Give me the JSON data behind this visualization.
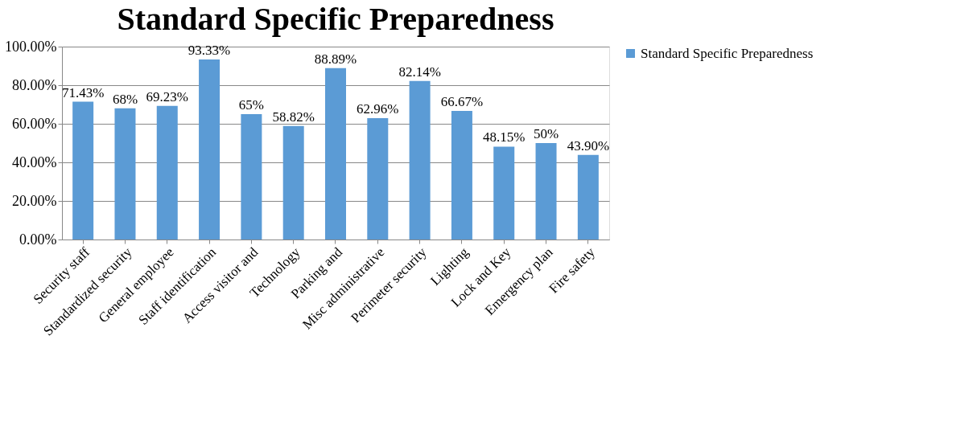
{
  "chart_data": {
    "type": "bar",
    "title": "Standard Specific Preparedness",
    "categories": [
      "Security staff",
      "Standardized security",
      "General employee",
      "Staff identification",
      "Access visitor and",
      "Technology",
      "Parking and",
      "Misc administrative",
      "Perimeter security",
      "Lighting",
      "Lock and Key",
      "Emergency plan",
      "Fire safety"
    ],
    "series": [
      {
        "name": "Standard Specific Preparedness",
        "color": "#5b9bd5",
        "values": [
          71.43,
          68,
          69.23,
          93.33,
          65,
          58.82,
          88.89,
          62.96,
          82.14,
          66.67,
          48.15,
          50,
          43.9
        ],
        "value_labels": [
          "71.43%",
          "68%",
          "69.23%",
          "93.33%",
          "65%",
          "58.82%",
          "88.89%",
          "62.96%",
          "82.14%",
          "66.67%",
          "48.15%",
          "50%",
          "43.90%"
        ]
      }
    ],
    "ylim": [
      0,
      100
    ],
    "yticks": [
      {
        "value": 0,
        "label": "0.00%"
      },
      {
        "value": 20,
        "label": "20.00%"
      },
      {
        "value": 40,
        "label": "40.00%"
      },
      {
        "value": 60,
        "label": "60.00%"
      },
      {
        "value": 80,
        "label": "80.00%"
      },
      {
        "value": 100,
        "label": "100.00%"
      }
    ],
    "grid": "y",
    "legend": "right"
  }
}
